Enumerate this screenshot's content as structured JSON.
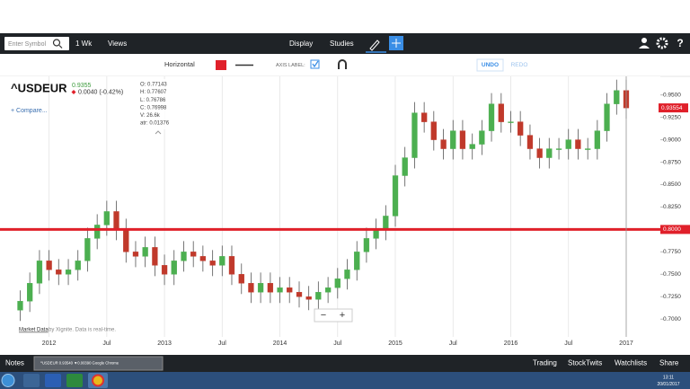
{
  "toolbar": {
    "symbol_placeholder": "Enter Symbol",
    "interval": "1 Wk",
    "views": "Views",
    "display": "Display",
    "studies": "Studies"
  },
  "drawing_bar": {
    "tool": "Horizontal",
    "axis_label": "AXIS LABEL:",
    "undo": "UNDO",
    "redo": "REDO"
  },
  "quote": {
    "symbol": "^USDEUR",
    "price": "0.9355",
    "change": "0.0040 (-0.42%)",
    "compare": "+ Compare..."
  },
  "info": {
    "rows": [
      "O: 0.77143",
      "H: 0.77607",
      "L: 0.76786",
      "C: 0.76998",
      "V: 26.6k",
      "atr: 0.01376"
    ]
  },
  "chart_data": {
    "type": "candlestick",
    "x": [
      2011.75,
      2011.833,
      2011.917,
      2012,
      2012.083,
      2012.167,
      2012.25,
      2012.333,
      2012.417,
      2012.5,
      2012.583,
      2012.667,
      2012.75,
      2012.833,
      2012.917,
      2013,
      2013.083,
      2013.167,
      2013.25,
      2013.333,
      2013.417,
      2013.5,
      2013.583,
      2013.667,
      2013.75,
      2013.833,
      2013.917,
      2014,
      2014.083,
      2014.167,
      2014.25,
      2014.333,
      2014.417,
      2014.5,
      2014.583,
      2014.667,
      2014.75,
      2014.833,
      2014.917,
      2015,
      2015.083,
      2015.167,
      2015.25,
      2015.333,
      2015.417,
      2015.5,
      2015.583,
      2015.667,
      2015.75,
      2015.833,
      2015.917,
      2016,
      2016.083,
      2016.167,
      2016.25,
      2016.333,
      2016.417,
      2016.5,
      2016.583,
      2016.667,
      2016.75,
      2016.833,
      2016.917,
      2017
    ],
    "open": [
      0.71,
      0.72,
      0.74,
      0.765,
      0.755,
      0.75,
      0.755,
      0.765,
      0.79,
      0.805,
      0.82,
      0.8,
      0.775,
      0.77,
      0.78,
      0.76,
      0.75,
      0.765,
      0.775,
      0.77,
      0.765,
      0.76,
      0.77,
      0.75,
      0.74,
      0.73,
      0.74,
      0.73,
      0.735,
      0.73,
      0.725,
      0.722,
      0.73,
      0.735,
      0.745,
      0.755,
      0.775,
      0.79,
      0.8,
      0.815,
      0.86,
      0.88,
      0.93,
      0.92,
      0.9,
      0.89,
      0.91,
      0.89,
      0.895,
      0.91,
      0.94,
      0.92,
      0.92,
      0.905,
      0.89,
      0.88,
      0.89,
      0.89,
      0.9,
      0.89,
      0.89,
      0.91,
      0.94,
      0.955
    ],
    "high": [
      0.732,
      0.752,
      0.777,
      0.777,
      0.767,
      0.767,
      0.777,
      0.802,
      0.817,
      0.832,
      0.832,
      0.812,
      0.787,
      0.792,
      0.792,
      0.772,
      0.777,
      0.787,
      0.787,
      0.782,
      0.777,
      0.782,
      0.782,
      0.762,
      0.752,
      0.752,
      0.752,
      0.747,
      0.747,
      0.742,
      0.737,
      0.742,
      0.747,
      0.757,
      0.767,
      0.787,
      0.802,
      0.812,
      0.827,
      0.872,
      0.892,
      0.942,
      0.942,
      0.932,
      0.912,
      0.922,
      0.922,
      0.907,
      0.922,
      0.952,
      0.952,
      0.932,
      0.932,
      0.917,
      0.902,
      0.902,
      0.902,
      0.912,
      0.912,
      0.902,
      0.922,
      0.952,
      0.967,
      0.967
    ],
    "low": [
      0.698,
      0.708,
      0.728,
      0.743,
      0.738,
      0.738,
      0.743,
      0.753,
      0.778,
      0.793,
      0.788,
      0.763,
      0.758,
      0.758,
      0.748,
      0.738,
      0.738,
      0.753,
      0.758,
      0.753,
      0.748,
      0.748,
      0.738,
      0.728,
      0.718,
      0.718,
      0.718,
      0.718,
      0.718,
      0.713,
      0.71,
      0.71,
      0.718,
      0.723,
      0.733,
      0.743,
      0.763,
      0.778,
      0.788,
      0.803,
      0.848,
      0.868,
      0.908,
      0.888,
      0.878,
      0.878,
      0.878,
      0.878,
      0.883,
      0.898,
      0.908,
      0.908,
      0.893,
      0.878,
      0.868,
      0.868,
      0.878,
      0.878,
      0.878,
      0.878,
      0.878,
      0.898,
      0.928,
      0.9235
    ],
    "close": [
      0.72,
      0.74,
      0.765,
      0.755,
      0.75,
      0.755,
      0.765,
      0.79,
      0.805,
      0.82,
      0.8,
      0.775,
      0.77,
      0.78,
      0.76,
      0.75,
      0.765,
      0.775,
      0.77,
      0.765,
      0.76,
      0.77,
      0.75,
      0.74,
      0.73,
      0.74,
      0.73,
      0.735,
      0.73,
      0.725,
      0.722,
      0.73,
      0.735,
      0.745,
      0.755,
      0.775,
      0.79,
      0.8,
      0.815,
      0.86,
      0.88,
      0.93,
      0.92,
      0.9,
      0.89,
      0.91,
      0.89,
      0.895,
      0.91,
      0.94,
      0.92,
      0.92,
      0.905,
      0.89,
      0.88,
      0.89,
      0.89,
      0.9,
      0.89,
      0.89,
      0.91,
      0.94,
      0.955,
      0.9355
    ],
    "up_color": "#4caf50",
    "down_color": "#c0392b",
    "xlim": [
      2011.575,
      2017.296
    ],
    "ylim": [
      0.6802,
      0.9707
    ],
    "xticks": [
      {
        "value": 2012,
        "label": "2012"
      },
      {
        "value": 2012.5,
        "label": "Jul"
      },
      {
        "value": 2013,
        "label": "2013"
      },
      {
        "value": 2013.5,
        "label": "Jul"
      },
      {
        "value": 2014,
        "label": "2014"
      },
      {
        "value": 2014.5,
        "label": "Jul"
      },
      {
        "value": 2015,
        "label": "2015"
      },
      {
        "value": 2015.5,
        "label": "Jul"
      },
      {
        "value": 2016,
        "label": "2016"
      },
      {
        "value": 2016.5,
        "label": "Jul"
      },
      {
        "value": 2017,
        "label": "2017"
      }
    ],
    "yticks": [
      {
        "value": 0.7,
        "label": "0.7000"
      },
      {
        "value": 0.725,
        "label": "0.7250"
      },
      {
        "value": 0.75,
        "label": "0.7500"
      },
      {
        "value": 0.775,
        "label": "0.7750"
      },
      {
        "value": 0.825,
        "label": "0.8250"
      },
      {
        "value": 0.85,
        "label": "0.8500"
      },
      {
        "value": 0.875,
        "label": "0.8750"
      },
      {
        "value": 0.9,
        "label": "0.9000"
      },
      {
        "value": 0.925,
        "label": "0.9250"
      },
      {
        "value": 0.95,
        "label": "0.9500"
      }
    ],
    "grid": "x",
    "hline": {
      "value": 0.8,
      "label": "0.8000",
      "color": "#e0202a"
    },
    "last_price": {
      "value": 0.93554,
      "label": "0.93554",
      "color": "#e0202a"
    }
  },
  "attribution": {
    "link": "Market Data",
    "text": "by Xignite. Data is real-time."
  },
  "zoom": {
    "out": "−",
    "in": "+"
  },
  "footer": {
    "notes": "Notes",
    "task": "^USDEUR 0.93540 ▼0.00390 Google Chrome",
    "links": [
      "Trading",
      "StockTwits",
      "Watchlists",
      "Share"
    ]
  },
  "taskbar": {
    "time": "13:11",
    "date": "20/01/2017"
  }
}
